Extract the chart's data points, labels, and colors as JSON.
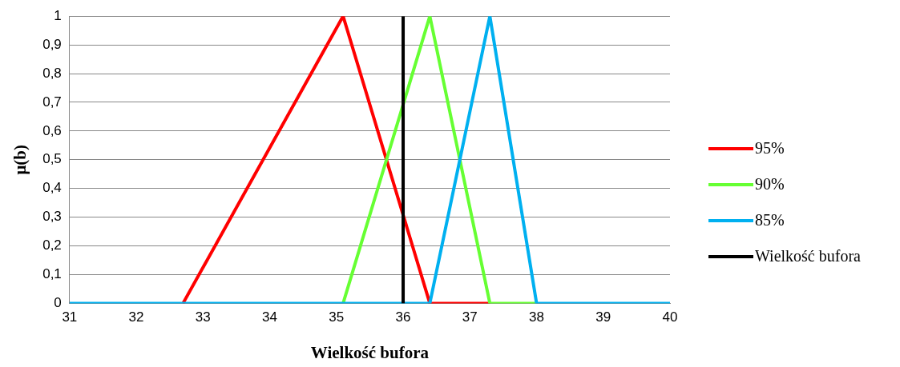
{
  "chart_data": {
    "type": "line",
    "xlabel": "Wielkość bufora",
    "ylabel": "μ(b)",
    "xlim": [
      31,
      40
    ],
    "xticks": [
      31,
      32,
      33,
      34,
      35,
      36,
      37,
      38,
      39,
      40
    ],
    "ylim": [
      0,
      1
    ],
    "yticks": [
      0,
      {
        "value": 0.1,
        "label": "0,1"
      },
      {
        "value": 0.2,
        "label": "0,2"
      },
      {
        "value": 0.3,
        "label": "0,3"
      },
      {
        "value": 0.4,
        "label": "0,4"
      },
      {
        "value": 0.5,
        "label": "0,5"
      },
      {
        "value": 0.6,
        "label": "0,6"
      },
      {
        "value": 0.7,
        "label": "0,7"
      },
      {
        "value": 0.8,
        "label": "0,8"
      },
      {
        "value": 0.9,
        "label": "0,9"
      },
      1
    ],
    "grid": "y",
    "legend": "right",
    "marker": "none",
    "line_style": "solid",
    "series": [
      {
        "name": "95%",
        "color": "#ff0000",
        "x": [
          32.7,
          35.1,
          36.4,
          37.3
        ],
        "values": [
          0,
          1,
          0,
          0
        ]
      },
      {
        "name": "90%",
        "color": "#66ff33",
        "x": [
          35.1,
          36.4,
          37.3,
          38
        ],
        "values": [
          0,
          1,
          0,
          0
        ]
      },
      {
        "name": "85%",
        "color": "#00b0f0",
        "x": [
          31,
          36.4,
          37.3,
          38,
          40
        ],
        "values": [
          0,
          0,
          1,
          0,
          0
        ]
      },
      {
        "name": "Wielkość bufora",
        "color": "#000000",
        "x": [
          36,
          36
        ],
        "values": [
          0,
          1
        ]
      }
    ]
  }
}
